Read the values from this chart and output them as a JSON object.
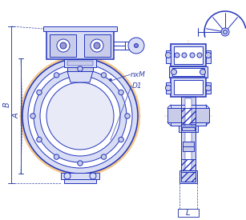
{
  "bg_color": "#ffffff",
  "lc": "#2233bb",
  "lc2": "#1122aa",
  "oc": "#f5c888",
  "lbc": "#d8ddf5",
  "lbc2": "#c8cce8",
  "clc": "#e0a060",
  "dc": "#3344aa",
  "lw": 0.7,
  "lw2": 1.1,
  "lw1": 0.35,
  "labels": {
    "B": "B",
    "A": "A",
    "nxM": "nxM",
    "D1": "D1",
    "L": "L"
  }
}
